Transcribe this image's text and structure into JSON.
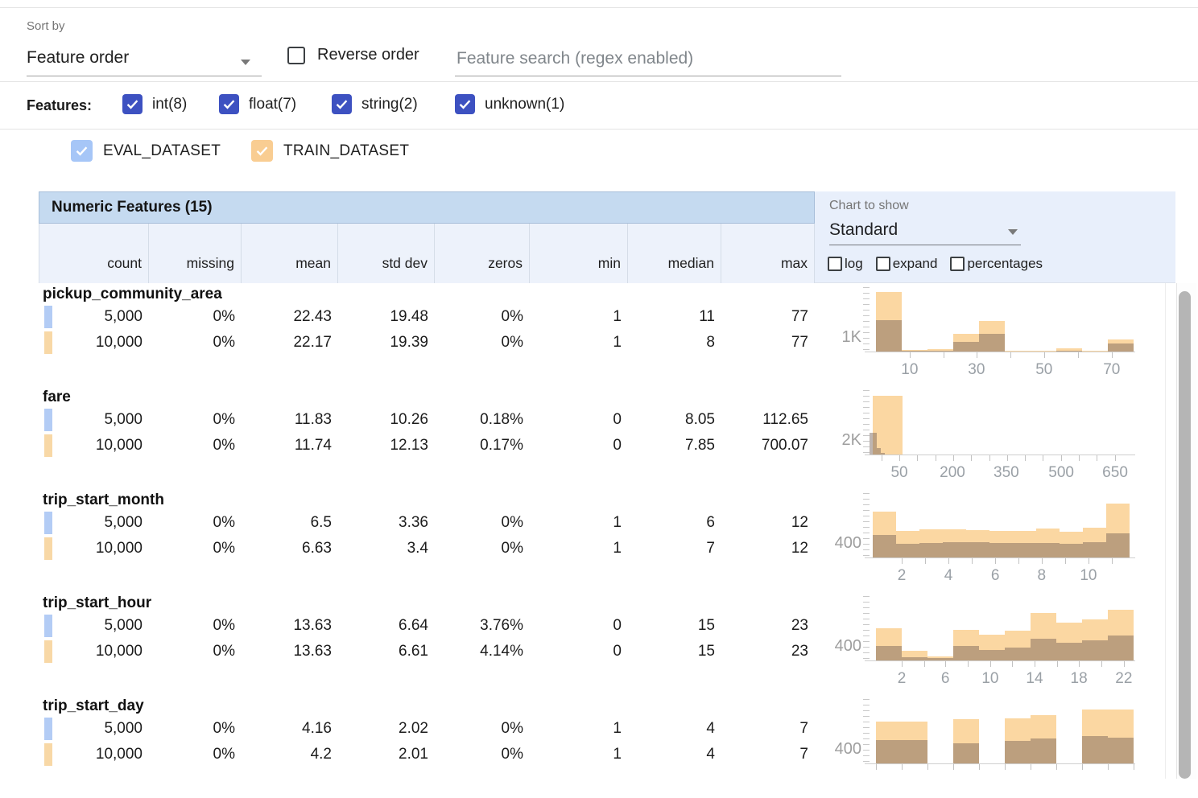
{
  "toolbar": {
    "sort_by_label": "Sort by",
    "sort_by_value": "Feature order",
    "reverse_label": "Reverse order",
    "search_placeholder": "Feature search (regex enabled)"
  },
  "filters": {
    "label": "Features:",
    "checkbox_color": "#3d51c1",
    "items": [
      {
        "label": "int(8)",
        "checked": true
      },
      {
        "label": "float(7)",
        "checked": true
      },
      {
        "label": "string(2)",
        "checked": true
      },
      {
        "label": "unknown(1)",
        "checked": true
      }
    ]
  },
  "datasets": [
    {
      "name": "EVAL_DATASET",
      "checked": true,
      "checkbox_color": "#a6c6f7",
      "chip_color": "#b3ccf5"
    },
    {
      "name": "TRAIN_DATASET",
      "checked": true,
      "checkbox_color": "#f9cd92",
      "chip_color": "#f8d8a6"
    }
  ],
  "table": {
    "title": "Numeric Features (15)",
    "columns": [
      "count",
      "missing",
      "mean",
      "std dev",
      "zeros",
      "min",
      "median",
      "max"
    ]
  },
  "chart_controls": {
    "label": "Chart to show",
    "value": "Standard",
    "options": [
      {
        "label": "log",
        "checked": false
      },
      {
        "label": "expand",
        "checked": false
      },
      {
        "label": "percentages",
        "checked": false
      }
    ]
  },
  "histogram_colors": {
    "train_bar": "#fbd7a2",
    "eval_overlay": "rgba(110,92,83,0.45)"
  },
  "features": [
    {
      "name": "pickup_community_area",
      "rows": [
        {
          "dataset": "EVAL_DATASET",
          "values": [
            "5,000",
            "0%",
            "22.43",
            "19.48",
            "0%",
            "1",
            "11",
            "77"
          ]
        },
        {
          "dataset": "TRAIN_DATASET",
          "values": [
            "10,000",
            "0%",
            "22.17",
            "19.39",
            "0%",
            "1",
            "8",
            "77"
          ]
        }
      ],
      "histogram": {
        "ylabel": "1K",
        "xlabels": [
          {
            "f": 0.152,
            "t": "10"
          },
          {
            "f": 0.405,
            "t": "30"
          },
          {
            "f": 0.661,
            "t": "50"
          },
          {
            "f": 0.917,
            "t": "70"
          }
        ],
        "ticks": [
          0.152,
          0.28,
          0.405,
          0.533,
          0.661,
          0.789,
          0.917
        ],
        "bins": [
          {
            "x": 0.024,
            "w": 0.098,
            "train_h": 74,
            "eval_h": 39
          },
          {
            "x": 0.122,
            "w": 0.098,
            "train_h": 2,
            "eval_h": 1
          },
          {
            "x": 0.219,
            "w": 0.098,
            "train_h": 3,
            "eval_h": 1
          },
          {
            "x": 0.317,
            "w": 0.098,
            "train_h": 22,
            "eval_h": 12
          },
          {
            "x": 0.415,
            "w": 0.098,
            "train_h": 38,
            "eval_h": 22
          },
          {
            "x": 0.512,
            "w": 0.098,
            "train_h": 1,
            "eval_h": 0
          },
          {
            "x": 0.61,
            "w": 0.098,
            "train_h": 1,
            "eval_h": 0
          },
          {
            "x": 0.707,
            "w": 0.098,
            "train_h": 4,
            "eval_h": 1
          },
          {
            "x": 0.805,
            "w": 0.098,
            "train_h": 1,
            "eval_h": 0
          },
          {
            "x": 0.902,
            "w": 0.098,
            "train_h": 15,
            "eval_h": 10
          }
        ]
      }
    },
    {
      "name": "fare",
      "rows": [
        {
          "dataset": "EVAL_DATASET",
          "values": [
            "5,000",
            "0%",
            "11.83",
            "10.26",
            "0.18%",
            "0",
            "8.05",
            "112.65"
          ]
        },
        {
          "dataset": "TRAIN_DATASET",
          "values": [
            "10,000",
            "0%",
            "11.74",
            "12.13",
            "0.17%",
            "0",
            "7.85",
            "700.07"
          ]
        }
      ],
      "histogram": {
        "ylabel": "2K",
        "xlabels": [
          {
            "f": 0.113,
            "t": "50"
          },
          {
            "f": 0.314,
            "t": "200"
          },
          {
            "f": 0.518,
            "t": "350"
          },
          {
            "f": 0.726,
            "t": "500"
          },
          {
            "f": 0.93,
            "t": "650"
          }
        ],
        "ticks": [
          0.045,
          0.113,
          0.181,
          0.249,
          0.317,
          0.385,
          0.453,
          0.521,
          0.589,
          0.657,
          0.725,
          0.793,
          0.861,
          0.929
        ],
        "bins": [
          {
            "x": 0.012,
            "w": 0.112,
            "train_h": 73,
            "eval_h": 0
          },
          {
            "x": 0.0,
            "w": 0.026,
            "train_h": 0,
            "eval_h": 27
          },
          {
            "x": 0.026,
            "w": 0.016,
            "train_h": 0,
            "eval_h": 8
          },
          {
            "x": 0.042,
            "w": 0.016,
            "train_h": 0,
            "eval_h": 2
          }
        ]
      }
    },
    {
      "name": "trip_start_month",
      "rows": [
        {
          "dataset": "EVAL_DATASET",
          "values": [
            "5,000",
            "0%",
            "6.5",
            "3.36",
            "0%",
            "1",
            "6",
            "12"
          ]
        },
        {
          "dataset": "TRAIN_DATASET",
          "values": [
            "10,000",
            "0%",
            "6.63",
            "3.4",
            "0%",
            "1",
            "7",
            "12"
          ]
        }
      ],
      "histogram": {
        "ylabel": "400",
        "xlabels": [
          {
            "f": 0.122,
            "t": "2"
          },
          {
            "f": 0.299,
            "t": "4"
          },
          {
            "f": 0.476,
            "t": "6"
          },
          {
            "f": 0.652,
            "t": "8"
          },
          {
            "f": 0.829,
            "t": "10"
          }
        ],
        "ticks": [
          0.122,
          0.21,
          0.299,
          0.387,
          0.476,
          0.564,
          0.652,
          0.741,
          0.829,
          0.918
        ],
        "bins": [
          {
            "x": 0.012,
            "w": 0.0885,
            "train_h": 57,
            "eval_h": 28
          },
          {
            "x": 0.1005,
            "w": 0.0885,
            "train_h": 33,
            "eval_h": 17
          },
          {
            "x": 0.189,
            "w": 0.0885,
            "train_h": 35,
            "eval_h": 18
          },
          {
            "x": 0.2775,
            "w": 0.0885,
            "train_h": 35,
            "eval_h": 19
          },
          {
            "x": 0.366,
            "w": 0.0885,
            "train_h": 34,
            "eval_h": 19
          },
          {
            "x": 0.4545,
            "w": 0.0885,
            "train_h": 33,
            "eval_h": 18
          },
          {
            "x": 0.543,
            "w": 0.0885,
            "train_h": 33,
            "eval_h": 18
          },
          {
            "x": 0.6315,
            "w": 0.0885,
            "train_h": 36,
            "eval_h": 18
          },
          {
            "x": 0.72,
            "w": 0.0885,
            "train_h": 32,
            "eval_h": 17
          },
          {
            "x": 0.8085,
            "w": 0.0885,
            "train_h": 37,
            "eval_h": 19
          },
          {
            "x": 0.897,
            "w": 0.0885,
            "train_h": 67,
            "eval_h": 30
          }
        ]
      }
    },
    {
      "name": "trip_start_hour",
      "rows": [
        {
          "dataset": "EVAL_DATASET",
          "values": [
            "5,000",
            "0%",
            "13.63",
            "6.64",
            "3.76%",
            "0",
            "15",
            "23"
          ]
        },
        {
          "dataset": "TRAIN_DATASET",
          "values": [
            "10,000",
            "0%",
            "13.63",
            "6.61",
            "4.14%",
            "0",
            "15",
            "23"
          ]
        }
      ],
      "histogram": {
        "ylabel": "400",
        "xlabels": [
          {
            "f": 0.122,
            "t": "2"
          },
          {
            "f": 0.287,
            "t": "6"
          },
          {
            "f": 0.457,
            "t": "10"
          },
          {
            "f": 0.625,
            "t": "14"
          },
          {
            "f": 0.793,
            "t": "18"
          },
          {
            "f": 0.963,
            "t": "22"
          }
        ],
        "ticks": [
          0.122,
          0.206,
          0.287,
          0.372,
          0.457,
          0.54,
          0.625,
          0.71,
          0.793,
          0.878,
          0.963
        ],
        "bins": [
          {
            "x": 0.024,
            "w": 0.0976,
            "train_h": 40,
            "eval_h": 18
          },
          {
            "x": 0.122,
            "w": 0.0976,
            "train_h": 12,
            "eval_h": 4
          },
          {
            "x": 0.219,
            "w": 0.0976,
            "train_h": 5,
            "eval_h": 3
          },
          {
            "x": 0.317,
            "w": 0.0976,
            "train_h": 38,
            "eval_h": 18
          },
          {
            "x": 0.415,
            "w": 0.0976,
            "train_h": 32,
            "eval_h": 13
          },
          {
            "x": 0.512,
            "w": 0.0976,
            "train_h": 37,
            "eval_h": 16
          },
          {
            "x": 0.61,
            "w": 0.0976,
            "train_h": 59,
            "eval_h": 27
          },
          {
            "x": 0.707,
            "w": 0.0976,
            "train_h": 47,
            "eval_h": 22
          },
          {
            "x": 0.805,
            "w": 0.0976,
            "train_h": 51,
            "eval_h": 25
          },
          {
            "x": 0.902,
            "w": 0.0976,
            "train_h": 63,
            "eval_h": 31
          }
        ]
      }
    },
    {
      "name": "trip_start_day",
      "rows": [
        {
          "dataset": "EVAL_DATASET",
          "values": [
            "5,000",
            "0%",
            "4.16",
            "2.02",
            "0%",
            "1",
            "4",
            "7"
          ]
        },
        {
          "dataset": "TRAIN_DATASET",
          "values": [
            "10,000",
            "0%",
            "4.2",
            "2.01",
            "0%",
            "1",
            "4",
            "7"
          ]
        }
      ],
      "histogram": {
        "ylabel": "400",
        "xlabels": [],
        "ticks": [
          0.024,
          0.122,
          0.219,
          0.317,
          0.415,
          0.512,
          0.61,
          0.707,
          0.805,
          0.902,
          1.0
        ],
        "bins": [
          {
            "x": 0.024,
            "w": 0.0976,
            "train_h": 52,
            "eval_h": 29
          },
          {
            "x": 0.122,
            "w": 0.0976,
            "train_h": 52,
            "eval_h": 29
          },
          {
            "x": 0.317,
            "w": 0.0976,
            "train_h": 55,
            "eval_h": 25
          },
          {
            "x": 0.512,
            "w": 0.0976,
            "train_h": 56,
            "eval_h": 28
          },
          {
            "x": 0.61,
            "w": 0.0976,
            "train_h": 60,
            "eval_h": 31
          },
          {
            "x": 0.805,
            "w": 0.0976,
            "train_h": 67,
            "eval_h": 34
          },
          {
            "x": 0.902,
            "w": 0.0976,
            "train_h": 67,
            "eval_h": 32
          }
        ]
      }
    }
  ]
}
